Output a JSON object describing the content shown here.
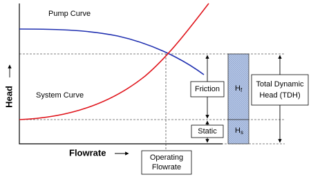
{
  "curves": {
    "pump": "Pump Curve",
    "system": "System Curve"
  },
  "axes": {
    "y": "Head",
    "x": "Flowrate"
  },
  "operating_point": [
    "Operating",
    "Flowrate"
  ],
  "segments": {
    "friction": "Friction",
    "static": "Static"
  },
  "bar": {
    "friction": {
      "symbol": "H",
      "subscript": "f"
    },
    "static": {
      "symbol": "H",
      "subscript": "s"
    }
  },
  "total": [
    "Total Dynamic",
    "Head (TDH)"
  ]
}
